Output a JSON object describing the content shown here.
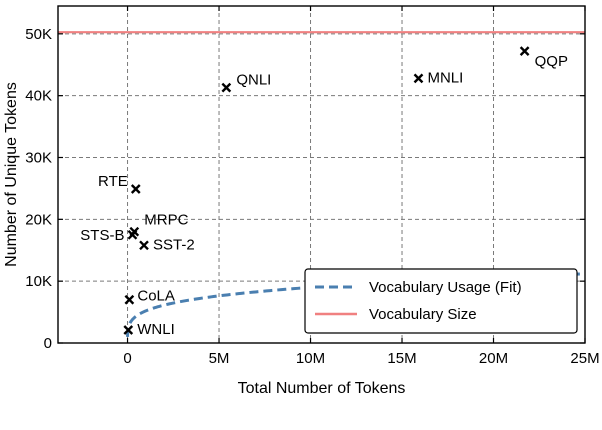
{
  "chart_data": {
    "type": "scatter",
    "xlabel": "Total Number of Tokens",
    "ylabel": "Number of Unique Tokens",
    "xlim": [
      -3800000,
      25000000
    ],
    "ylim": [
      0,
      54500
    ],
    "x_ticks": [
      0,
      5000000,
      10000000,
      15000000,
      20000000,
      25000000
    ],
    "x_tick_labels": [
      "0",
      "5M",
      "10M",
      "15M",
      "20M",
      "25M"
    ],
    "y_ticks": [
      0,
      10000,
      20000,
      30000,
      40000,
      50000
    ],
    "y_tick_labels": [
      "0",
      "10K",
      "20K",
      "30K",
      "40K",
      "50K"
    ],
    "grid": true,
    "legend_position": "lower-right",
    "points": [
      {
        "label": "QNLI",
        "x": 5400000,
        "y": 41300
      },
      {
        "label": "MNLI",
        "x": 15900000,
        "y": 42800
      },
      {
        "label": "QQP",
        "x": 21700000,
        "y": 47200
      },
      {
        "label": "RTE",
        "x": 450000,
        "y": 24900
      },
      {
        "label": "MRPC",
        "x": 370000,
        "y": 18000
      },
      {
        "label": "STS-B",
        "x": 270000,
        "y": 17500
      },
      {
        "label": "SST-2",
        "x": 900000,
        "y": 15800
      },
      {
        "label": "CoLA",
        "x": 100000,
        "y": 7000
      },
      {
        "label": "WNLI",
        "x": 40000,
        "y": 2100
      }
    ],
    "series": [
      {
        "name": "Vocabulary Usage (Fit)",
        "kind": "dashed-line",
        "color": "#4a7fb0"
      },
      {
        "name": "Vocabulary Size",
        "kind": "hline",
        "y": 50265,
        "color": "#f08080"
      }
    ]
  }
}
